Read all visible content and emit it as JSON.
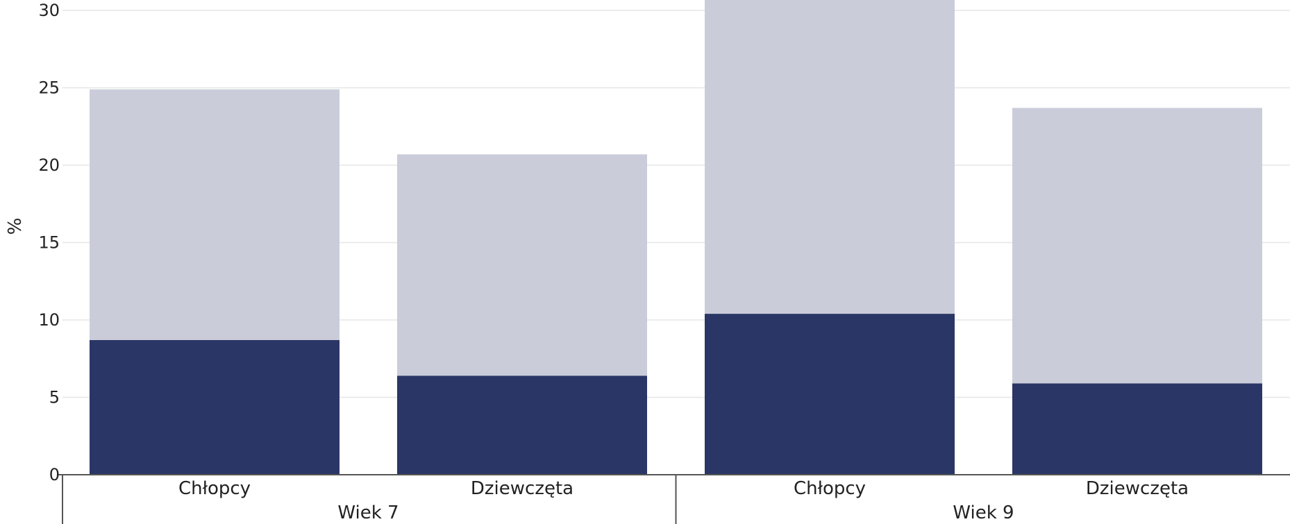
{
  "chart_data": {
    "type": "bar",
    "stacked": true,
    "ylabel": "%",
    "ylim": [
      0,
      30
    ],
    "yticks": [
      0,
      5,
      10,
      15,
      20,
      25,
      30
    ],
    "grid": true,
    "groups": [
      {
        "label": "Wiek 7",
        "categories": [
          "Chłopcy",
          "Dziewczęta"
        ]
      },
      {
        "label": "Wiek 9",
        "categories": [
          "Chłopcy",
          "Dziewczęta"
        ]
      }
    ],
    "series": [
      {
        "color": "#2a3665",
        "values": [
          8.7,
          6.4,
          10.4,
          5.9
        ]
      },
      {
        "color": "#cacdd9",
        "values": [
          16.2,
          14.3,
          20.3,
          17.8
        ]
      }
    ]
  }
}
